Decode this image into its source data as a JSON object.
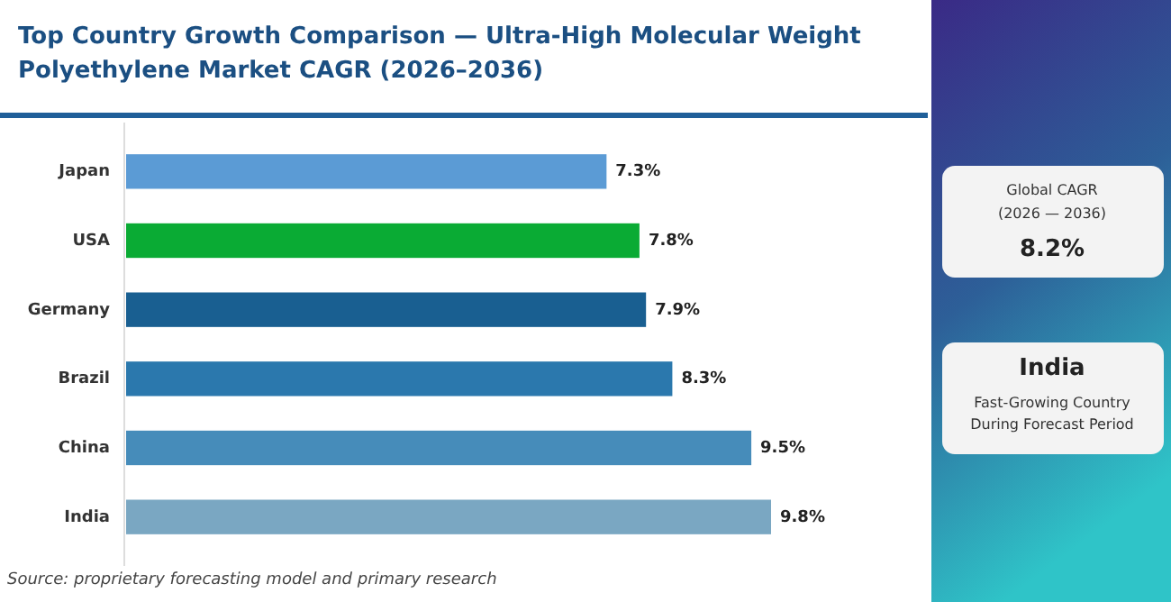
{
  "chart_data": [
    {
      "type": "bar",
      "orientation": "horizontal",
      "title": "Top Country Growth Comparison — Ultra-High Molecular Weight Polyethylene Market CAGR (2026–2036)",
      "categories": [
        "Japan",
        "USA",
        "Germany",
        "Brazil",
        "China",
        "India"
      ],
      "values": [
        7.3,
        7.8,
        7.9,
        8.3,
        9.5,
        9.8
      ],
      "colors": [
        "#5b9bd5",
        "#0aab34",
        "#195f91",
        "#2b78ad",
        "#468cba",
        "#7aa7c2"
      ],
      "value_labels": [
        "7.3%",
        "7.8%",
        "7.9%",
        "8.3%",
        "9.5%",
        "9.8%"
      ],
      "annotations": [
        "Source: proprietary forecasting model and primary research"
      ]
    },
    {
      "type": "other",
      "annotations": [
        "Global CAGR",
        "(2026 — 2036)",
        "8.2%",
        "India",
        "Fast-Growing Country",
        "During Forecast Period"
      ]
    }
  ]
}
